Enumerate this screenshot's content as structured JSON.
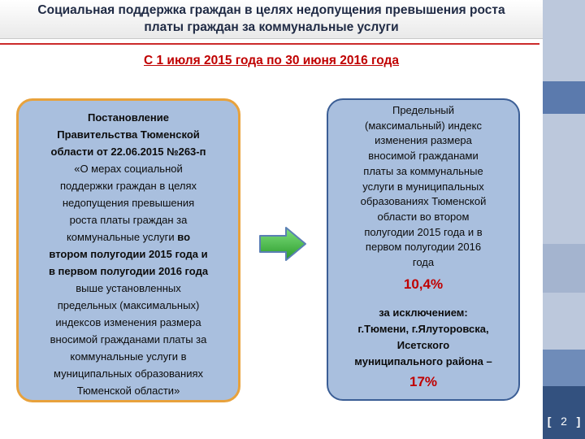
{
  "header": {
    "title_line1": "Социальная поддержка граждан в целях недопущения превышения роста",
    "title_line2": "платы граждан за коммунальные услуги",
    "period": "С 1 июля 2015 года по 30 июня 2016 года"
  },
  "left_box": {
    "line1": "Постановление",
    "line2": "Правительства Тюменской",
    "line3": "области от 22.06.2015 №263-п",
    "line4": "«О мерах социальной",
    "line5": "поддержки граждан в целях",
    "line6": "недопущения превышения",
    "line7": "роста платы граждан за",
    "line8a": "коммунальные услуги ",
    "line8b": "во",
    "line9": "втором полугодии 2015 года и",
    "line10": "в первом полугодии 2016 года",
    "line11": "выше установленных",
    "line12": "предельных (максимальных)",
    "line13": "индексов изменения размера",
    "line14": "вносимой гражданами платы за",
    "line15": "коммунальные услуги в",
    "line16": "муниципальных образованиях",
    "line17": "Тюменской области»"
  },
  "right_box": {
    "line1": "Предельный",
    "line2": "(максимальный) индекс",
    "line3": "изменения размера",
    "line4": "вносимой гражданами",
    "line5": "платы за коммунальные",
    "line6": "услуги в муниципальных",
    "line7": "образованиях Тюменской",
    "line8": "области во втором",
    "line9": "полугодии 2015 года и в",
    "line10": "первом полугодии 2016",
    "line11": "года",
    "percent": "10,4%",
    "exc1": "за исключением:",
    "exc2": "г.Тюмени, г.Ялуторовска,",
    "exc3": "Исетского",
    "exc4": "муниципального района –",
    "percent2": "17%"
  },
  "footer": {
    "page_number": "2",
    "bracket_left": "[",
    "bracket_right": "]"
  },
  "colors": {
    "accent_red": "#c00000",
    "box_fill": "#a9bfde",
    "left_border": "#e8a23c",
    "right_border": "#3b5e95",
    "arrow_fill": "#3dbd3d",
    "sidebar": "#bcc8dc"
  },
  "icons": {
    "arrow": "right-arrow-icon"
  }
}
